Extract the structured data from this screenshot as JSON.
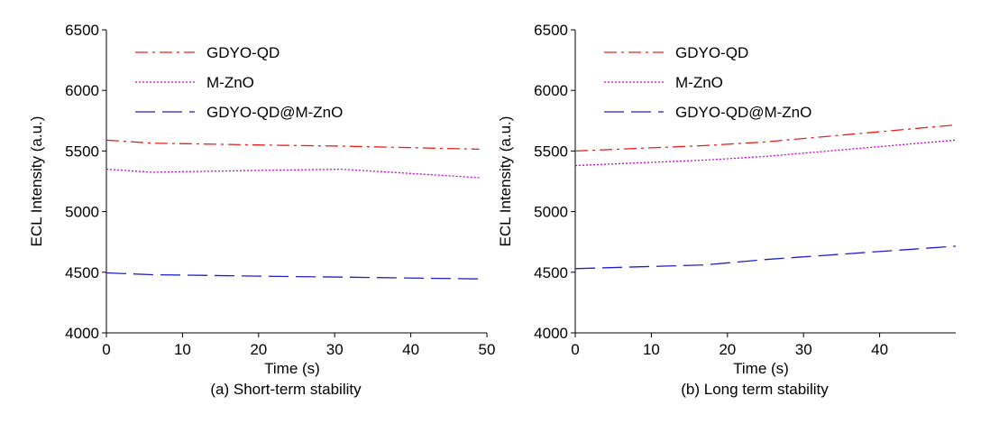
{
  "chart_data": [
    {
      "type": "line",
      "caption": "(a) Short-term stability",
      "xlabel": "Time (s)",
      "ylabel": "ECL Intensity (a.u.)",
      "xlim": [
        0,
        50
      ],
      "ylim": [
        4000,
        6500
      ],
      "xticks": [
        0,
        10,
        20,
        30,
        40,
        50
      ],
      "yticks": [
        4000,
        4500,
        5000,
        5500,
        6000,
        6500
      ],
      "grid": false,
      "legend_position": "top-left",
      "series": [
        {
          "name": "GDYO-QD",
          "color": "#e8201b",
          "dash": "dashdot",
          "points": [
            [
              0,
              5590
            ],
            [
              6,
              5565
            ],
            [
              20,
              5550
            ],
            [
              31,
              5540
            ],
            [
              49,
              5515
            ]
          ]
        },
        {
          "name": "M-ZnO",
          "color": "#cc00cc",
          "dash": "dot",
          "points": [
            [
              0,
              5350
            ],
            [
              6,
              5325
            ],
            [
              20,
              5340
            ],
            [
              31,
              5350
            ],
            [
              49,
              5280
            ]
          ]
        },
        {
          "name": "GDYO-QD@M-ZnO",
          "color": "#1f1fc8",
          "dash": "longdash",
          "points": [
            [
              0,
              4495
            ],
            [
              6,
              4480
            ],
            [
              20,
              4468
            ],
            [
              31,
              4460
            ],
            [
              49,
              4445
            ]
          ]
        }
      ]
    },
    {
      "type": "line",
      "caption": "(b) Long term stability",
      "xlabel": "Time (s)",
      "ylabel": "ECL Intensity (a.u.)",
      "xlim": [
        0,
        50
      ],
      "ylim": [
        4000,
        6500
      ],
      "xticks": [
        0,
        10,
        20,
        30,
        40
      ],
      "yticks": [
        4000,
        4500,
        5000,
        5500,
        6000,
        6500
      ],
      "grid": false,
      "legend_position": "top-left",
      "series": [
        {
          "name": "GDYO-QD",
          "color": "#e8201b",
          "dash": "dashdot",
          "points": [
            [
              0,
              5500
            ],
            [
              17,
              5545
            ],
            [
              25,
              5575
            ],
            [
              50,
              5715
            ]
          ]
        },
        {
          "name": "M-ZnO",
          "color": "#cc00cc",
          "dash": "dot",
          "points": [
            [
              0,
              5380
            ],
            [
              17,
              5425
            ],
            [
              25,
              5455
            ],
            [
              50,
              5590
            ]
          ]
        },
        {
          "name": "GDYO-QD@M-ZnO",
          "color": "#1f1fc8",
          "dash": "longdash",
          "points": [
            [
              0,
              4530
            ],
            [
              17,
              4560
            ],
            [
              25,
              4605
            ],
            [
              50,
              4715
            ]
          ]
        }
      ]
    }
  ]
}
